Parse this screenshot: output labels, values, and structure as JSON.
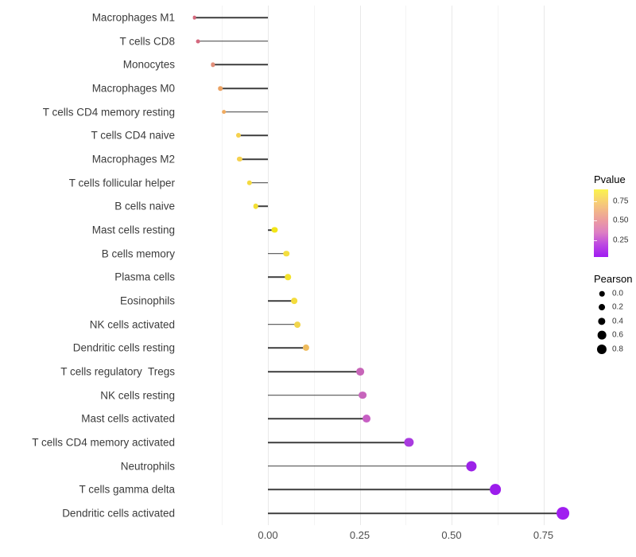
{
  "chart_data": {
    "type": "lollipop",
    "title": "",
    "xlabel": "",
    "ylabel": "",
    "xlim": [
      -0.249,
      0.872
    ],
    "x_baseline": 0,
    "grid": "vertical-only",
    "x_ticks": [
      {
        "value": 0.0,
        "label": "0.00"
      },
      {
        "value": 0.25,
        "label": "0.25"
      },
      {
        "value": 0.5,
        "label": "0.50"
      },
      {
        "value": 0.75,
        "label": "0.75"
      }
    ],
    "x_minor_ticks": [
      -0.125,
      0.125,
      0.375,
      0.625,
      0.875
    ],
    "rows": [
      {
        "label": "Macrophages M1",
        "pearson": -0.2,
        "color": "#d4687c"
      },
      {
        "label": "T cells CD8",
        "pearson": -0.19,
        "color": "#d4687e"
      },
      {
        "label": "Monocytes",
        "pearson": -0.15,
        "color": "#e28f79"
      },
      {
        "label": "Macrophages M0",
        "pearson": -0.13,
        "color": "#eba263"
      },
      {
        "label": "T cells CD4 memory resting",
        "pearson": -0.12,
        "color": "#f0ab60"
      },
      {
        "label": "T cells CD4 naive",
        "pearson": -0.08,
        "color": "#f5d14e"
      },
      {
        "label": "Macrophages M2",
        "pearson": -0.077,
        "color": "#f5d14e"
      },
      {
        "label": "T cells follicular helper",
        "pearson": -0.05,
        "color": "#f4da40"
      },
      {
        "label": "B cells naive",
        "pearson": -0.033,
        "color": "#f3df33"
      },
      {
        "label": "Mast cells resting",
        "pearson": 0.018,
        "color": "#f2e518"
      },
      {
        "label": "B cells memory",
        "pearson": 0.05,
        "color": "#f4de3f"
      },
      {
        "label": "Plasma cells",
        "pearson": 0.055,
        "color": "#f3e22c"
      },
      {
        "label": "Eosinophils",
        "pearson": 0.072,
        "color": "#f4dc3d"
      },
      {
        "label": "NK cells activated",
        "pearson": 0.08,
        "color": "#f1d54c"
      },
      {
        "label": "Dendritic cells resting",
        "pearson": 0.104,
        "color": "#efbc5e"
      },
      {
        "label": "T cells regulatory  Tregs",
        "pearson": 0.252,
        "color": "#c765b8"
      },
      {
        "label": "NK cells resting",
        "pearson": 0.258,
        "color": "#c765bc"
      },
      {
        "label": "Mast cells activated",
        "pearson": 0.268,
        "color": "#c75fc4"
      },
      {
        "label": "T cells CD4 memory activated",
        "pearson": 0.384,
        "color": "#a93bdf"
      },
      {
        "label": "Neutrophils",
        "pearson": 0.554,
        "color": "#9c22e8"
      },
      {
        "label": "T cells gamma delta",
        "pearson": 0.62,
        "color": "#9c1cec"
      },
      {
        "label": "Dendritic cells activated",
        "pearson": 0.804,
        "color": "#a01ef0"
      }
    ],
    "legends": {
      "pvalue": {
        "title": "Pvalue",
        "domain_top": 0.9,
        "domain_bottom": 0.03,
        "ticks": [
          {
            "value": 0.75,
            "label": "0.75"
          },
          {
            "value": 0.5,
            "label": "0.50"
          },
          {
            "value": 0.25,
            "label": "0.25"
          }
        ],
        "gradient_stops": [
          {
            "pos": 0,
            "color": "#fbf34e"
          },
          {
            "pos": 22,
            "color": "#f6c87a"
          },
          {
            "pos": 45,
            "color": "#ec9d9e"
          },
          {
            "pos": 64,
            "color": "#dc7ec4"
          },
          {
            "pos": 82,
            "color": "#bc47e2"
          },
          {
            "pos": 100,
            "color": "#a01bf2"
          }
        ]
      },
      "pearson": {
        "title": "Pearson",
        "items": [
          {
            "value": 0.0,
            "label": "0.0"
          },
          {
            "value": 0.2,
            "label": "0.2"
          },
          {
            "value": 0.4,
            "label": "0.4"
          },
          {
            "value": 0.6,
            "label": "0.6"
          },
          {
            "value": 0.8,
            "label": "0.8"
          }
        ]
      }
    }
  }
}
